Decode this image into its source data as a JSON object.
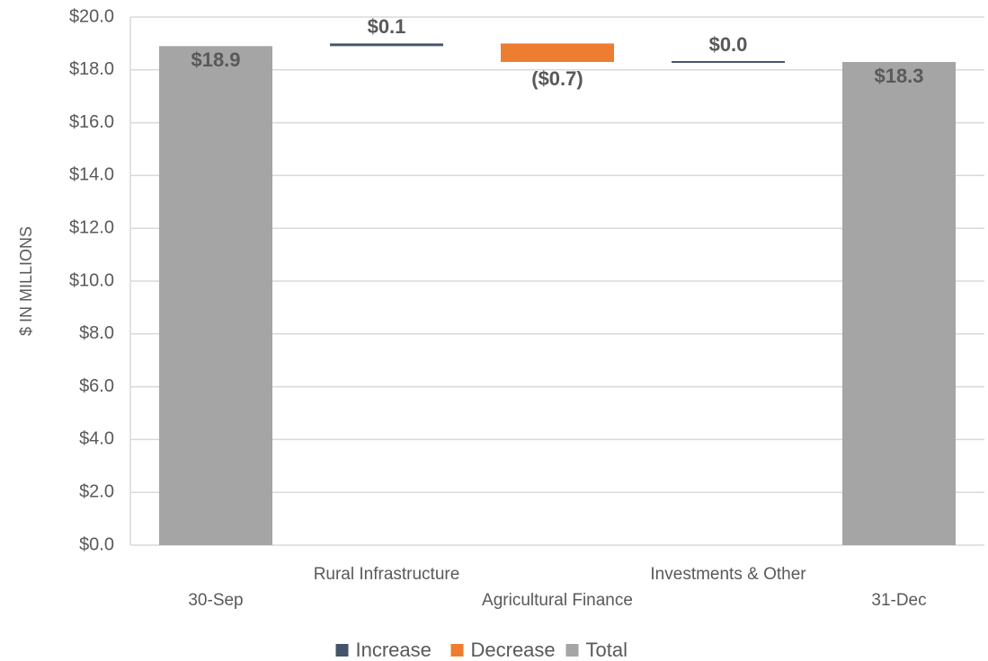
{
  "chart_data": {
    "type": "waterfall",
    "y_label": "$ IN MILLIONS",
    "categories": [
      "30-Sep",
      "Rural Infrastructure",
      "Agricultural Finance",
      "Investments & Other",
      "31-Dec"
    ],
    "series": [
      {
        "name": "Increase",
        "color": "#44546a",
        "values": [
          null,
          0.1,
          null,
          0.0,
          null
        ],
        "value_labels": [
          null,
          "$0.1",
          null,
          "$0.0",
          null
        ]
      },
      {
        "name": "Decrease",
        "color": "#ed7d31",
        "values": [
          null,
          null,
          -0.7,
          null,
          null
        ],
        "value_labels": [
          null,
          null,
          "($0.7)",
          null,
          null
        ]
      },
      {
        "name": "Total",
        "color": "#a5a5a6",
        "values": [
          18.9,
          null,
          null,
          null,
          18.3
        ],
        "value_labels": [
          "$18.9",
          null,
          null,
          null,
          "$18.3"
        ]
      }
    ],
    "ylim": [
      0,
      20
    ],
    "yticks": [
      {
        "value": 0,
        "label": "$0.0"
      },
      {
        "value": 2,
        "label": "$2.0"
      },
      {
        "value": 4,
        "label": "$4.0"
      },
      {
        "value": 6,
        "label": "$6.0"
      },
      {
        "value": 8,
        "label": "$8.0"
      },
      {
        "value": 10,
        "label": "$10.0"
      },
      {
        "value": 12,
        "label": "$12.0"
      },
      {
        "value": 14,
        "label": "$14.0"
      },
      {
        "value": 16,
        "label": "$16.0"
      },
      {
        "value": 18,
        "label": "$18.0"
      },
      {
        "value": 20,
        "label": "$20.0"
      }
    ],
    "grid": true,
    "legend": "bottom"
  }
}
